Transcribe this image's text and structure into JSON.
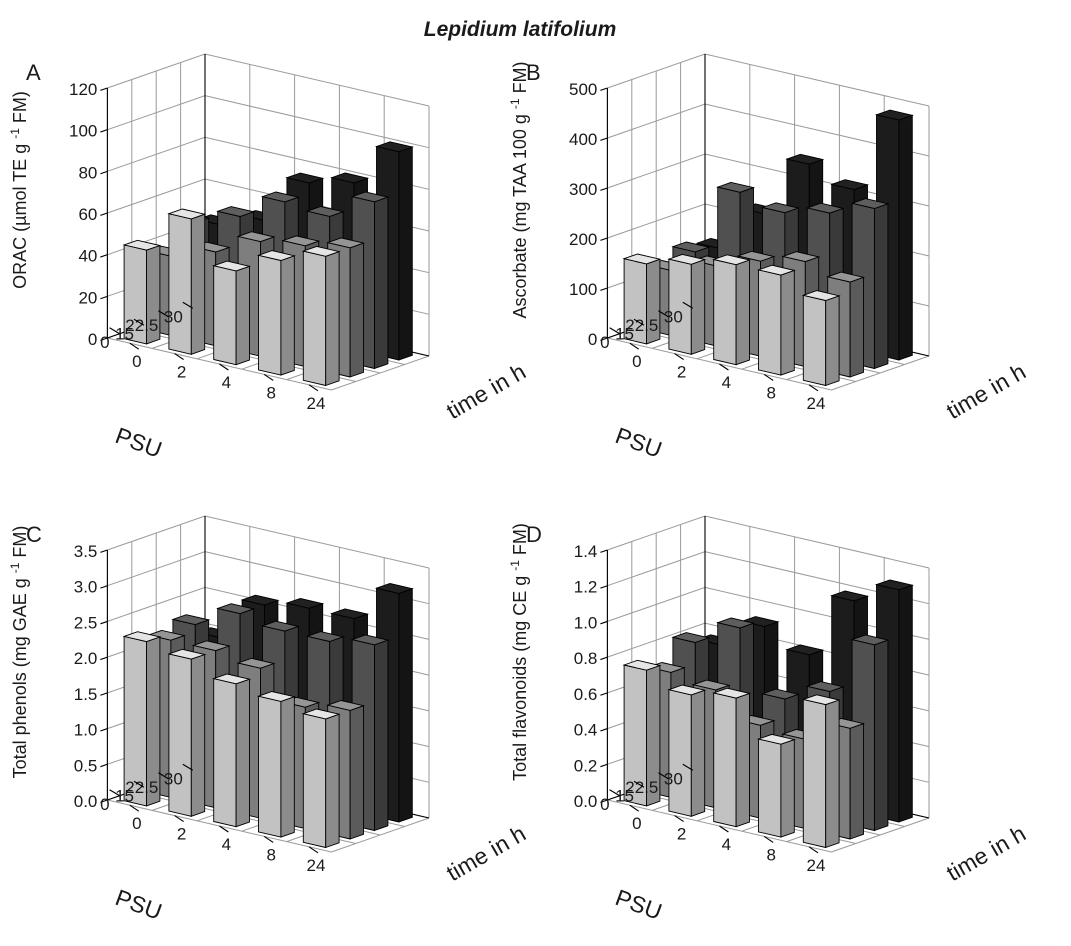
{
  "title": "Lepidium latifolium",
  "colors": {
    "ramp_dark_to_light": [
      "#1c1c1c",
      "#505050",
      "#7e7e7e",
      "#c2c2c2",
      "#f2f2f2"
    ],
    "grid": "#9a9a9a",
    "wall": "#ffffff",
    "edge": "#000000"
  },
  "chart_data": [
    {
      "panel": "A",
      "type": "bar3d",
      "ylabel": "ORAC (µmol TE g⁻¹ FM)",
      "ylim": [
        0,
        120
      ],
      "yticks": [
        "0",
        "20",
        "40",
        "60",
        "80",
        "100",
        "120"
      ],
      "psu_label": "PSU",
      "time_label": "time in h",
      "psu": [
        "30",
        "22.5",
        "15",
        "0"
      ],
      "time": [
        "0",
        "2",
        "4",
        "8",
        "24"
      ],
      "values": [
        [
          45,
          52,
          75,
          80,
          100
        ],
        [
          50,
          58,
          70,
          68,
          80
        ],
        [
          38,
          45,
          55,
          58,
          62
        ],
        [
          45,
          65,
          45,
          55,
          62
        ]
      ]
    },
    {
      "panel": "B",
      "type": "bar3d",
      "ylabel": "Ascorbate (mg TAA 100 g⁻¹ FM)",
      "ylim": [
        0,
        500
      ],
      "yticks": [
        "0",
        "100",
        "200",
        "300",
        "400",
        "500"
      ],
      "psu_label": "PSU",
      "time_label": "time in h",
      "psu": [
        "30",
        "22.5",
        "15",
        "0"
      ],
      "time": [
        "0",
        "2",
        "4",
        "8",
        "24"
      ],
      "values": [
        [
          140,
          230,
          350,
          320,
          480
        ],
        [
          150,
          290,
          270,
          290,
          320
        ],
        [
          130,
          160,
          190,
          210,
          190
        ],
        [
          160,
          180,
          200,
          200,
          170
        ]
      ]
    },
    {
      "panel": "C",
      "type": "bar3d",
      "ylabel": "Total phenols (mg GAE g⁻¹ FM)",
      "ylim": [
        0,
        3.5
      ],
      "yticks": [
        "0.0",
        "0.5",
        "1.0",
        "1.5",
        "2.0",
        "2.5",
        "3.0",
        "3.5"
      ],
      "psu_label": "PSU",
      "time_label": "time in h",
      "psu": [
        "30",
        "22.5",
        "15",
        "0"
      ],
      "time": [
        "0",
        "2",
        "4",
        "8",
        "24"
      ],
      "values": [
        [
          2.0,
          2.6,
          2.7,
          2.7,
          3.2
        ],
        [
          2.3,
          2.6,
          2.5,
          2.5,
          2.6
        ],
        [
          2.2,
          2.2,
          2.1,
          1.7,
          1.8
        ],
        [
          2.3,
          2.2,
          2.0,
          1.9,
          1.8
        ]
      ]
    },
    {
      "panel": "D",
      "type": "bar3d",
      "ylabel": "Total flavonoids (mg CE g⁻¹ FM)",
      "ylim": [
        0,
        1.4
      ],
      "yticks": [
        "0.0",
        "0.2",
        "0.4",
        "0.6",
        "0.8",
        "1.0",
        "1.2",
        "1.4"
      ],
      "psu_label": "PSU",
      "time_label": "time in h",
      "psu": [
        "30",
        "22.5",
        "15",
        "0"
      ],
      "time": [
        "0",
        "2",
        "4",
        "8",
        "24"
      ],
      "values": [
        [
          0.76,
          0.92,
          0.82,
          1.18,
          1.3
        ],
        [
          0.82,
          0.96,
          0.62,
          0.72,
          1.04
        ],
        [
          0.7,
          0.66,
          0.52,
          0.5,
          0.62
        ],
        [
          0.76,
          0.68,
          0.72,
          0.52,
          0.8
        ]
      ]
    }
  ]
}
